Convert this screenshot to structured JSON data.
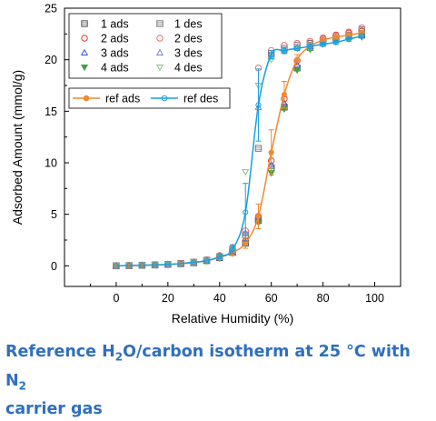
{
  "caption": {
    "line1_a": "Reference H",
    "line1_sub1": "2",
    "line1_b": "O/carbon isotherm at 25 °C with N",
    "line1_sub2": "2",
    "line2": "carrier gas"
  },
  "chart_data": {
    "type": "scatter",
    "title": "",
    "xlabel": "Relative Humidity (%)",
    "ylabel": "Adsorbed Amount (mmol/g)",
    "xlim": [
      -20,
      110
    ],
    "ylim": [
      -2,
      25
    ],
    "xticks": [
      "0",
      "20",
      "40",
      "60",
      "80",
      "100"
    ],
    "yticks": [
      "0",
      "5",
      "10",
      "15",
      "20",
      "25"
    ],
    "legend_placement": "top-left",
    "grid": false,
    "series": [
      {
        "name": "1 ads",
        "marker": "square",
        "filled": false,
        "color": "#555555",
        "x": [
          0,
          5,
          10,
          15,
          20,
          25,
          30,
          35,
          40,
          45,
          50,
          55,
          60,
          65,
          70,
          75,
          80,
          85,
          90,
          95
        ],
        "y": [
          0,
          0.02,
          0.05,
          0.08,
          0.13,
          0.2,
          0.3,
          0.5,
          0.8,
          1.3,
          2.2,
          4.4,
          9.5,
          15.4,
          19.2,
          21.2,
          21.8,
          22.1,
          22.3,
          22.4
        ]
      },
      {
        "name": "2 ads",
        "marker": "circle",
        "filled": false,
        "color": "#e53935",
        "x": [
          0,
          5,
          10,
          15,
          20,
          25,
          30,
          35,
          40,
          45,
          50,
          55,
          60,
          65,
          70,
          75,
          80,
          85,
          90,
          95
        ],
        "y": [
          0,
          0.03,
          0.06,
          0.1,
          0.15,
          0.22,
          0.33,
          0.55,
          0.9,
          1.4,
          2.4,
          4.8,
          10.2,
          16.2,
          19.9,
          21.6,
          22.1,
          22.4,
          22.6,
          22.8
        ]
      },
      {
        "name": "3 ads",
        "marker": "triangle-up",
        "filled": false,
        "color": "#3a5bd8",
        "x": [
          0,
          5,
          10,
          15,
          20,
          25,
          30,
          35,
          40,
          45,
          50,
          55,
          60,
          65,
          70,
          75,
          80,
          85,
          90,
          95
        ],
        "y": [
          0,
          0.02,
          0.05,
          0.08,
          0.12,
          0.2,
          0.3,
          0.48,
          0.8,
          1.3,
          2.3,
          4.6,
          9.8,
          15.8,
          19.5,
          21.3,
          21.9,
          22.2,
          22.3,
          22.5
        ]
      },
      {
        "name": "4 ads",
        "marker": "triangle-down",
        "filled": true,
        "color": "#43a047",
        "x": [
          0,
          5,
          10,
          15,
          20,
          25,
          30,
          35,
          40,
          45,
          50,
          55,
          60,
          65,
          70,
          75,
          80,
          85,
          90,
          95
        ],
        "y": [
          0,
          0.02,
          0.04,
          0.07,
          0.11,
          0.18,
          0.28,
          0.45,
          0.75,
          1.2,
          2.1,
          4.2,
          9.0,
          15.2,
          19.0,
          21.0,
          21.6,
          21.9,
          22.0,
          22.2
        ]
      },
      {
        "name": "1 des",
        "marker": "square",
        "filled": false,
        "color": "#777777",
        "x": [
          95,
          90,
          85,
          80,
          75,
          70,
          65,
          60,
          55,
          50,
          45,
          40,
          35,
          30,
          25,
          20,
          15,
          10,
          5,
          0
        ],
        "y": [
          22.9,
          22.4,
          22.0,
          21.8,
          21.6,
          21.4,
          21.1,
          20.6,
          11.4,
          3.0,
          1.6,
          0.9,
          0.55,
          0.35,
          0.22,
          0.14,
          0.09,
          0.05,
          0.03,
          0
        ]
      },
      {
        "name": "2 des",
        "marker": "circle",
        "filled": false,
        "color": "#e57373",
        "x": [
          95,
          90,
          85,
          80,
          75,
          70,
          65,
          60,
          55,
          50,
          45,
          40,
          35,
          30,
          25,
          20,
          15,
          10,
          5,
          0
        ],
        "y": [
          23.1,
          22.7,
          22.3,
          22.0,
          21.8,
          21.6,
          21.4,
          20.9,
          19.2,
          3.4,
          1.8,
          1.0,
          0.6,
          0.38,
          0.24,
          0.15,
          0.09,
          0.05,
          0.03,
          0
        ]
      },
      {
        "name": "3 des",
        "marker": "triangle-up",
        "filled": false,
        "color": "#7986cb",
        "x": [
          95,
          90,
          85,
          80,
          75,
          70,
          65,
          60,
          55,
          50,
          45,
          40,
          35,
          30,
          25,
          20,
          15,
          10,
          5,
          0
        ],
        "y": [
          22.6,
          22.2,
          21.9,
          21.6,
          21.4,
          21.2,
          20.9,
          20.3,
          15.4,
          3.2,
          1.7,
          0.95,
          0.55,
          0.36,
          0.22,
          0.14,
          0.09,
          0.05,
          0.03,
          0
        ]
      },
      {
        "name": "4 des",
        "marker": "triangle-down",
        "filled": false,
        "color": "#81c784",
        "x": [
          95,
          90,
          85,
          80,
          75,
          70,
          65,
          60,
          55,
          50,
          45,
          40,
          35,
          30,
          25,
          20,
          15,
          10,
          5,
          0
        ],
        "y": [
          22.4,
          22.0,
          21.7,
          21.5,
          21.3,
          21.1,
          20.8,
          20.0,
          17.5,
          9.1,
          1.6,
          0.9,
          0.5,
          0.33,
          0.2,
          0.13,
          0.08,
          0.05,
          0.03,
          0
        ]
      }
    ],
    "ref_series": [
      {
        "name": "ref ads",
        "marker": "circle",
        "filled": true,
        "color": "#f0892f",
        "x": [
          0,
          5,
          10,
          15,
          20,
          25,
          30,
          35,
          40,
          45,
          50,
          55,
          60,
          65,
          70,
          75,
          80,
          85,
          90,
          95
        ],
        "y": [
          0,
          0.02,
          0.05,
          0.08,
          0.13,
          0.2,
          0.3,
          0.5,
          0.8,
          1.3,
          2.2,
          4.8,
          11.0,
          16.6,
          20.0,
          21.3,
          21.9,
          22.2,
          22.4,
          22.6
        ],
        "err": [
          0.05,
          0.05,
          0.05,
          0.05,
          0.05,
          0.1,
          0.1,
          0.15,
          0.2,
          0.3,
          0.5,
          1.2,
          2.2,
          1.3,
          0.5,
          0.3,
          0.2,
          0.2,
          0.2,
          0.2
        ]
      },
      {
        "name": "ref des",
        "marker": "circle",
        "filled": false,
        "color": "#1a9ee0",
        "x": [
          95,
          90,
          85,
          80,
          75,
          70,
          65,
          60,
          55,
          50,
          45,
          40,
          35,
          30,
          25,
          20,
          15,
          10,
          5,
          0
        ],
        "y": [
          22.3,
          22.0,
          21.7,
          21.5,
          21.3,
          21.1,
          20.9,
          20.5,
          15.6,
          5.2,
          1.6,
          0.9,
          0.5,
          0.35,
          0.22,
          0.14,
          0.09,
          0.05,
          0.03,
          0
        ],
        "err": [
          0.2,
          0.2,
          0.2,
          0.2,
          0.2,
          0.2,
          0.3,
          0.4,
          3.5,
          2.8,
          0.4,
          0.2,
          0.15,
          0.1,
          0.1,
          0.05,
          0.05,
          0.05,
          0.05,
          0.05
        ]
      }
    ]
  }
}
